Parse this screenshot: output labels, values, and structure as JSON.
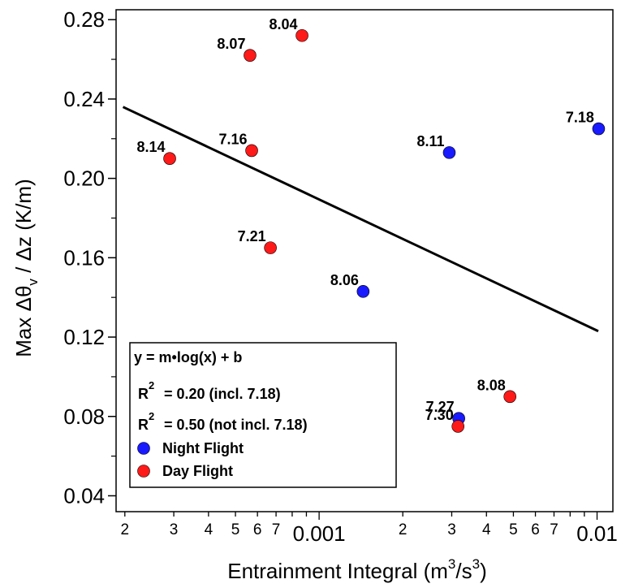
{
  "chart_data": {
    "type": "scatter",
    "ylabel": [
      "Max  Δθ",
      "v",
      " / Δz  (K/m)"
    ],
    "xlabel": [
      "Entrainment Integral (m",
      "3",
      "/s",
      "3",
      ")"
    ],
    "log_x": true,
    "xlim": [
      0.000186,
      0.0114
    ],
    "ylim": [
      0.032,
      0.285
    ],
    "xticks": [
      {
        "value": 0.0002,
        "label": "2"
      },
      {
        "value": 0.0003,
        "label": "3"
      },
      {
        "value": 0.0004,
        "label": "4"
      },
      {
        "value": 0.0005,
        "label": "5"
      },
      {
        "value": 0.0006,
        "label": "6"
      },
      {
        "value": 0.0007,
        "label": "7"
      },
      0.001,
      {
        "value": 0.002,
        "label": "2"
      },
      {
        "value": 0.003,
        "label": "3"
      },
      {
        "value": 0.004,
        "label": "4"
      },
      {
        "value": 0.005,
        "label": "5"
      },
      {
        "value": 0.006,
        "label": "6"
      },
      {
        "value": 0.007,
        "label": "7"
      },
      0.01
    ],
    "xminorticks": [
      0.0008,
      0.0009,
      0.008,
      0.009
    ],
    "yticks": [
      0.04,
      0.08,
      0.12,
      0.16,
      {
        "value": 0.2,
        "label": "0.20"
      },
      0.24,
      0.28
    ],
    "yminorticks": [
      0.06,
      0.1,
      0.14,
      0.18,
      0.22,
      0.26
    ],
    "series": [
      {
        "name": "Night Flight",
        "color": "#1a1aff",
        "point_labels": [
          "8.06",
          "8.11",
          "7.18",
          "7.27"
        ],
        "x": [
          0.00144,
          0.00294,
          0.01013,
          0.00318
        ],
        "values": [
          0.143,
          0.213,
          0.225,
          0.079
        ]
      },
      {
        "name": "Day Flight",
        "color": "#ff1a1a",
        "point_labels": [
          "8.14",
          "7.16",
          "8.07",
          "8.04",
          "7.21",
          "7.30",
          "8.08"
        ],
        "x": [
          0.00029,
          0.000572,
          0.000564,
          0.000868,
          0.000668,
          0.00316,
          0.00486
        ],
        "values": [
          0.21,
          0.214,
          0.262,
          0.272,
          0.165,
          0.075,
          0.09
        ]
      }
    ],
    "fit": {
      "color": "#000000",
      "x": [
        0.000197,
        0.0101
      ],
      "values": [
        0.236,
        0.123
      ]
    },
    "legend": {
      "equation": "y = m•log(x) + b",
      "stats": [
        {
          "label": "R",
          "sup": "2",
          "text": "= 0.20 (incl. 7.18)"
        },
        {
          "label": "R",
          "sup": "2",
          "text": "= 0.50 (not incl. 7.18)"
        }
      ]
    }
  }
}
